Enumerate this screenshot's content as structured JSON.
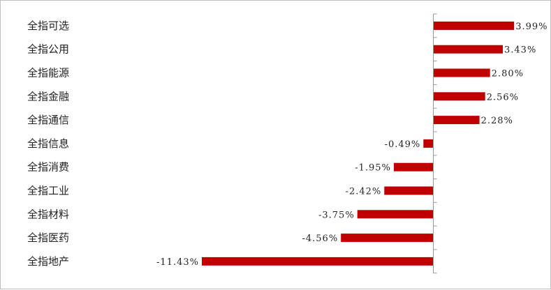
{
  "chart_data": {
    "type": "bar",
    "orientation": "horizontal",
    "categories": [
      "全指可选",
      "全指公用",
      "全指能源",
      "全指金融",
      "全指通信",
      "全指信息",
      "全指消费",
      "全指工业",
      "全指材料",
      "全指医药",
      "全指地产"
    ],
    "values": [
      3.99,
      3.43,
      2.8,
      2.56,
      2.28,
      -0.49,
      -1.95,
      -2.42,
      -3.75,
      -4.56,
      -11.43
    ],
    "value_labels": [
      "3.99%",
      "3.43%",
      "2.80%",
      "2.56%",
      "2.28%",
      "-0.49%",
      "-1.95%",
      "-2.42%",
      "-3.75%",
      "-4.56%",
      "-11.43%"
    ],
    "xlim": [
      -11.43,
      6.0
    ],
    "grid": false,
    "legend": "none",
    "bar_color": "#c00000",
    "axis_color": "#999999"
  }
}
